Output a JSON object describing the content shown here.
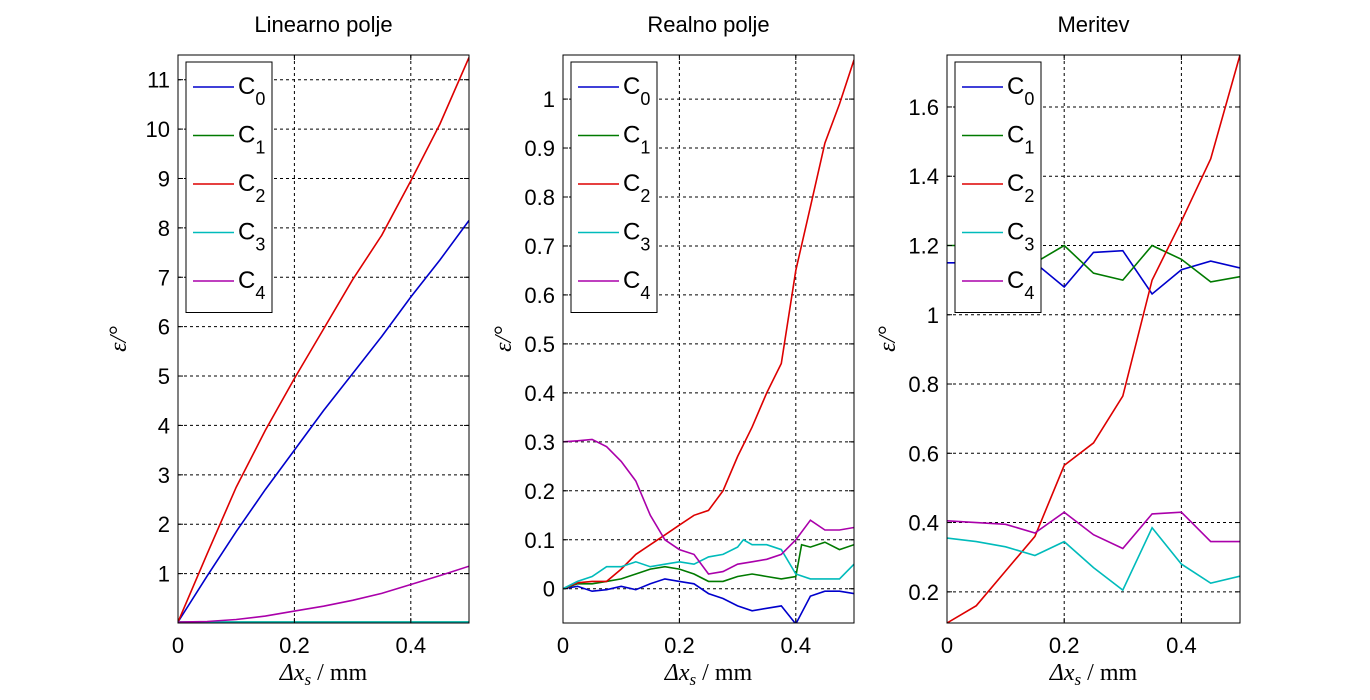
{
  "charts": [
    {
      "type": "line",
      "title": "Linearno polje",
      "xlabel": "Δx_s / mm",
      "ylabel": "ε/°",
      "xlim": [
        0,
        0.5
      ],
      "ylim": [
        0,
        11.5
      ],
      "xticks": [
        "0",
        "0.2",
        "0.4"
      ],
      "xtick_values": [
        0,
        0.2,
        0.4
      ],
      "yticks": [
        "1",
        "2",
        "3",
        "4",
        "5",
        "6",
        "7",
        "8",
        "9",
        "10",
        "11"
      ],
      "ytick_values": [
        1,
        2,
        3,
        4,
        5,
        6,
        7,
        8,
        9,
        10,
        11
      ],
      "grid": true,
      "legend_position": "top-left",
      "series": [
        {
          "name": "C0",
          "name_base": "C",
          "name_sub": "0",
          "color": "#0000cc",
          "points": [
            [
              0,
              0.02
            ],
            [
              0.05,
              0.95
            ],
            [
              0.1,
              1.85
            ],
            [
              0.15,
              2.7
            ],
            [
              0.2,
              3.5
            ],
            [
              0.25,
              4.3
            ],
            [
              0.3,
              5.05
            ],
            [
              0.35,
              5.8
            ],
            [
              0.4,
              6.6
            ],
            [
              0.45,
              7.35
            ],
            [
              0.5,
              8.15
            ]
          ]
        },
        {
          "name": "C1",
          "name_base": "C",
          "name_sub": "1",
          "color": "#007a00",
          "points": [
            [
              0,
              0.02
            ],
            [
              0.1,
              0.02
            ],
            [
              0.2,
              0.02
            ],
            [
              0.3,
              0.02
            ],
            [
              0.4,
              0.02
            ],
            [
              0.5,
              0.02
            ]
          ]
        },
        {
          "name": "C2",
          "name_base": "C",
          "name_sub": "2",
          "color": "#dd0000",
          "points": [
            [
              0,
              0.02
            ],
            [
              0.05,
              1.4
            ],
            [
              0.1,
              2.75
            ],
            [
              0.15,
              3.9
            ],
            [
              0.2,
              4.95
            ],
            [
              0.25,
              5.95
            ],
            [
              0.3,
              6.95
            ],
            [
              0.35,
              7.85
            ],
            [
              0.4,
              8.95
            ],
            [
              0.45,
              10.1
            ],
            [
              0.5,
              11.45
            ]
          ]
        },
        {
          "name": "C3",
          "name_base": "C",
          "name_sub": "3",
          "color": "#00bbbb",
          "points": [
            [
              0,
              0.02
            ],
            [
              0.1,
              0.02
            ],
            [
              0.2,
              0.02
            ],
            [
              0.3,
              0.02
            ],
            [
              0.4,
              0.02
            ],
            [
              0.5,
              0.02
            ]
          ]
        },
        {
          "name": "C4",
          "name_base": "C",
          "name_sub": "4",
          "color": "#aa00aa",
          "points": [
            [
              0,
              0.02
            ],
            [
              0.05,
              0.03
            ],
            [
              0.1,
              0.07
            ],
            [
              0.15,
              0.14
            ],
            [
              0.2,
              0.24
            ],
            [
              0.25,
              0.34
            ],
            [
              0.3,
              0.46
            ],
            [
              0.35,
              0.6
            ],
            [
              0.4,
              0.78
            ],
            [
              0.45,
              0.96
            ],
            [
              0.5,
              1.15
            ]
          ]
        }
      ]
    },
    {
      "type": "line",
      "title": "Realno polje",
      "xlabel": "Δx_s / mm",
      "ylabel": "ε/°",
      "xlim": [
        0,
        0.5
      ],
      "ylim": [
        -0.07,
        1.09
      ],
      "xticks": [
        "0",
        "0.2",
        "0.4"
      ],
      "xtick_values": [
        0,
        0.2,
        0.4
      ],
      "yticks": [
        "0",
        "0.1",
        "0.2",
        "0.3",
        "0.4",
        "0.5",
        "0.6",
        "0.7",
        "0.8",
        "0.9",
        "1"
      ],
      "ytick_values": [
        0,
        0.1,
        0.2,
        0.3,
        0.4,
        0.5,
        0.6,
        0.7,
        0.8,
        0.9,
        1
      ],
      "grid": true,
      "legend_position": "top-left",
      "series": [
        {
          "name": "C0",
          "name_base": "C",
          "name_sub": "0",
          "color": "#0000cc",
          "points": [
            [
              0,
              0.0
            ],
            [
              0.025,
              0.005
            ],
            [
              0.05,
              -0.005
            ],
            [
              0.075,
              -0.002
            ],
            [
              0.1,
              0.005
            ],
            [
              0.125,
              -0.002
            ],
            [
              0.15,
              0.01
            ],
            [
              0.175,
              0.02
            ],
            [
              0.2,
              0.015
            ],
            [
              0.225,
              0.01
            ],
            [
              0.25,
              -0.01
            ],
            [
              0.275,
              -0.02
            ],
            [
              0.3,
              -0.035
            ],
            [
              0.325,
              -0.045
            ],
            [
              0.35,
              -0.04
            ],
            [
              0.375,
              -0.035
            ],
            [
              0.4,
              -0.072
            ],
            [
              0.425,
              -0.015
            ],
            [
              0.45,
              -0.005
            ],
            [
              0.475,
              -0.005
            ],
            [
              0.5,
              -0.01
            ]
          ]
        },
        {
          "name": "C1",
          "name_base": "C",
          "name_sub": "1",
          "color": "#007a00",
          "points": [
            [
              0,
              0.0
            ],
            [
              0.025,
              0.01
            ],
            [
              0.05,
              0.01
            ],
            [
              0.075,
              0.015
            ],
            [
              0.1,
              0.02
            ],
            [
              0.125,
              0.03
            ],
            [
              0.15,
              0.04
            ],
            [
              0.175,
              0.045
            ],
            [
              0.2,
              0.04
            ],
            [
              0.225,
              0.03
            ],
            [
              0.25,
              0.015
            ],
            [
              0.275,
              0.015
            ],
            [
              0.3,
              0.025
            ],
            [
              0.325,
              0.03
            ],
            [
              0.35,
              0.025
            ],
            [
              0.375,
              0.02
            ],
            [
              0.4,
              0.025
            ],
            [
              0.41,
              0.09
            ],
            [
              0.425,
              0.085
            ],
            [
              0.45,
              0.095
            ],
            [
              0.475,
              0.08
            ],
            [
              0.5,
              0.09
            ]
          ]
        },
        {
          "name": "C2",
          "name_base": "C",
          "name_sub": "2",
          "color": "#dd0000",
          "points": [
            [
              0,
              0.0
            ],
            [
              0.025,
              0.012
            ],
            [
              0.05,
              0.015
            ],
            [
              0.075,
              0.015
            ],
            [
              0.1,
              0.04
            ],
            [
              0.125,
              0.07
            ],
            [
              0.15,
              0.09
            ],
            [
              0.175,
              0.11
            ],
            [
              0.2,
              0.13
            ],
            [
              0.225,
              0.15
            ],
            [
              0.25,
              0.16
            ],
            [
              0.275,
              0.2
            ],
            [
              0.3,
              0.27
            ],
            [
              0.325,
              0.33
            ],
            [
              0.35,
              0.4
            ],
            [
              0.375,
              0.46
            ],
            [
              0.4,
              0.65
            ],
            [
              0.425,
              0.78
            ],
            [
              0.45,
              0.91
            ],
            [
              0.475,
              0.99
            ],
            [
              0.5,
              1.08
            ]
          ]
        },
        {
          "name": "C3",
          "name_base": "C",
          "name_sub": "3",
          "color": "#00bbbb",
          "points": [
            [
              0,
              0.0
            ],
            [
              0.025,
              0.015
            ],
            [
              0.05,
              0.025
            ],
            [
              0.075,
              0.045
            ],
            [
              0.1,
              0.045
            ],
            [
              0.125,
              0.055
            ],
            [
              0.15,
              0.045
            ],
            [
              0.175,
              0.05
            ],
            [
              0.2,
              0.055
            ],
            [
              0.225,
              0.05
            ],
            [
              0.25,
              0.065
            ],
            [
              0.275,
              0.07
            ],
            [
              0.3,
              0.085
            ],
            [
              0.31,
              0.1
            ],
            [
              0.325,
              0.09
            ],
            [
              0.35,
              0.09
            ],
            [
              0.375,
              0.08
            ],
            [
              0.4,
              0.03
            ],
            [
              0.425,
              0.02
            ],
            [
              0.45,
              0.02
            ],
            [
              0.475,
              0.02
            ],
            [
              0.5,
              0.05
            ]
          ]
        },
        {
          "name": "C4",
          "name_base": "C",
          "name_sub": "4",
          "color": "#aa00aa",
          "points": [
            [
              0,
              0.3
            ],
            [
              0.025,
              0.302
            ],
            [
              0.05,
              0.305
            ],
            [
              0.075,
              0.29
            ],
            [
              0.1,
              0.26
            ],
            [
              0.125,
              0.22
            ],
            [
              0.15,
              0.15
            ],
            [
              0.175,
              0.1
            ],
            [
              0.2,
              0.08
            ],
            [
              0.225,
              0.07
            ],
            [
              0.25,
              0.03
            ],
            [
              0.275,
              0.035
            ],
            [
              0.3,
              0.05
            ],
            [
              0.325,
              0.055
            ],
            [
              0.35,
              0.06
            ],
            [
              0.375,
              0.07
            ],
            [
              0.4,
              0.1
            ],
            [
              0.425,
              0.14
            ],
            [
              0.45,
              0.12
            ],
            [
              0.475,
              0.12
            ],
            [
              0.5,
              0.125
            ]
          ]
        }
      ]
    },
    {
      "type": "line",
      "title": "Meritev",
      "xlabel": "Δx_s / mm",
      "ylabel": "ε/°",
      "xlim": [
        0,
        0.5
      ],
      "ylim": [
        0.11,
        1.75
      ],
      "xticks": [
        "0",
        "0.2",
        "0.4"
      ],
      "xtick_values": [
        0,
        0.2,
        0.4
      ],
      "yticks": [
        "0.2",
        "0.4",
        "0.6",
        "0.8",
        "1",
        "1.2",
        "1.4",
        "1.6"
      ],
      "ytick_values": [
        0.2,
        0.4,
        0.6,
        0.8,
        1.0,
        1.2,
        1.4,
        1.6
      ],
      "grid": true,
      "legend_position": "top-left",
      "series": [
        {
          "name": "C0",
          "name_base": "C",
          "name_sub": "0",
          "color": "#0000cc",
          "points": [
            [
              0,
              1.15
            ],
            [
              0.05,
              1.15
            ],
            [
              0.1,
              1.15
            ],
            [
              0.15,
              1.15
            ],
            [
              0.2,
              1.08
            ],
            [
              0.25,
              1.18
            ],
            [
              0.3,
              1.185
            ],
            [
              0.35,
              1.06
            ],
            [
              0.4,
              1.13
            ],
            [
              0.45,
              1.155
            ],
            [
              0.5,
              1.135
            ]
          ]
        },
        {
          "name": "C1",
          "name_base": "C",
          "name_sub": "1",
          "color": "#007a00",
          "points": [
            [
              0,
              1.2
            ],
            [
              0.05,
              1.2
            ],
            [
              0.1,
              1.2
            ],
            [
              0.15,
              1.15
            ],
            [
              0.2,
              1.2
            ],
            [
              0.25,
              1.12
            ],
            [
              0.3,
              1.1
            ],
            [
              0.35,
              1.2
            ],
            [
              0.4,
              1.16
            ],
            [
              0.45,
              1.095
            ],
            [
              0.5,
              1.11
            ]
          ]
        },
        {
          "name": "C2",
          "name_base": "C",
          "name_sub": "2",
          "color": "#dd0000",
          "points": [
            [
              0,
              0.11
            ],
            [
              0.05,
              0.16
            ],
            [
              0.1,
              0.26
            ],
            [
              0.15,
              0.36
            ],
            [
              0.2,
              0.565
            ],
            [
              0.25,
              0.63
            ],
            [
              0.3,
              0.765
            ],
            [
              0.35,
              1.1
            ],
            [
              0.4,
              1.27
            ],
            [
              0.45,
              1.45
            ],
            [
              0.5,
              1.75
            ]
          ]
        },
        {
          "name": "C3",
          "name_base": "C",
          "name_sub": "3",
          "color": "#00bbbb",
          "points": [
            [
              0,
              0.355
            ],
            [
              0.05,
              0.345
            ],
            [
              0.1,
              0.33
            ],
            [
              0.15,
              0.305
            ],
            [
              0.2,
              0.345
            ],
            [
              0.25,
              0.27
            ],
            [
              0.3,
              0.205
            ],
            [
              0.35,
              0.385
            ],
            [
              0.4,
              0.28
            ],
            [
              0.45,
              0.225
            ],
            [
              0.5,
              0.245
            ]
          ]
        },
        {
          "name": "C4",
          "name_base": "C",
          "name_sub": "4",
          "color": "#aa00aa",
          "points": [
            [
              0,
              0.405
            ],
            [
              0.05,
              0.4
            ],
            [
              0.1,
              0.395
            ],
            [
              0.15,
              0.37
            ],
            [
              0.2,
              0.43
            ],
            [
              0.25,
              0.365
            ],
            [
              0.3,
              0.325
            ],
            [
              0.35,
              0.425
            ],
            [
              0.4,
              0.43
            ],
            [
              0.45,
              0.345
            ],
            [
              0.5,
              0.345
            ]
          ]
        }
      ]
    }
  ]
}
